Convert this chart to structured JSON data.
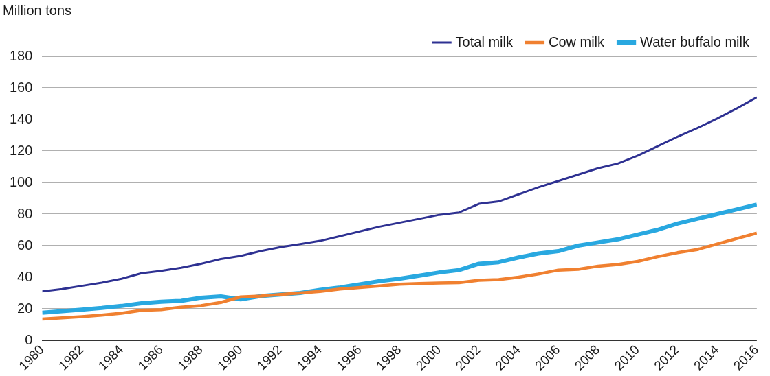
{
  "chart_data": {
    "type": "line",
    "ylabel": "Million tons",
    "x": [
      1980,
      1981,
      1982,
      1983,
      1984,
      1985,
      1986,
      1987,
      1988,
      1989,
      1990,
      1991,
      1992,
      1993,
      1994,
      1995,
      1996,
      1997,
      1998,
      1999,
      2000,
      2001,
      2002,
      2003,
      2004,
      2005,
      2006,
      2007,
      2008,
      2009,
      2010,
      2011,
      2012,
      2013,
      2014,
      2015,
      2016
    ],
    "series": [
      {
        "name": "Total milk",
        "color": "#2e3192",
        "values": [
          31,
          32.5,
          34.5,
          36.5,
          39,
          42.5,
          44,
          46,
          48.5,
          51.5,
          53.5,
          56.5,
          59,
          61,
          63,
          66,
          69,
          72,
          74.5,
          77,
          79.5,
          81,
          86.5,
          88,
          92.5,
          97,
          101,
          105,
          109,
          112,
          117,
          123,
          129,
          134.5,
          140.5,
          147,
          154
        ]
      },
      {
        "name": "Cow milk",
        "color": "#f08030",
        "values": [
          13.5,
          14.2,
          15,
          16,
          17.2,
          19,
          19.5,
          21,
          22,
          24,
          27.5,
          28,
          29,
          30,
          31,
          32.5,
          33.5,
          34.5,
          35.5,
          36,
          36.3,
          36.5,
          38,
          38.5,
          40,
          42,
          44.5,
          45,
          47,
          48,
          50,
          53,
          55.5,
          57.5,
          61,
          64.5,
          68
        ]
      },
      {
        "name": "Water buffalo milk",
        "color": "#29a8e0",
        "values": [
          17.5,
          18.5,
          19.5,
          20.5,
          21.8,
          23.5,
          24.5,
          25,
          27,
          27.8,
          26,
          28,
          29,
          30,
          32,
          33.5,
          35.5,
          37.5,
          39,
          41,
          43,
          44.5,
          48.5,
          49.5,
          52.5,
          55,
          56.5,
          60,
          62,
          64,
          67,
          70,
          74,
          77,
          80,
          83,
          86
        ]
      }
    ],
    "xlim": [
      1980,
      2016
    ],
    "xticks": [
      1980,
      1982,
      1984,
      1986,
      1988,
      1990,
      1992,
      1994,
      1996,
      1998,
      2000,
      2002,
      2004,
      2006,
      2008,
      2010,
      2012,
      2014,
      2016
    ],
    "ylim": [
      0,
      180
    ],
    "yticks": [
      0,
      20,
      40,
      60,
      80,
      100,
      120,
      140,
      160,
      180
    ],
    "grid": "y",
    "legend": "top right",
    "marker": "none",
    "line_style": "solid"
  }
}
